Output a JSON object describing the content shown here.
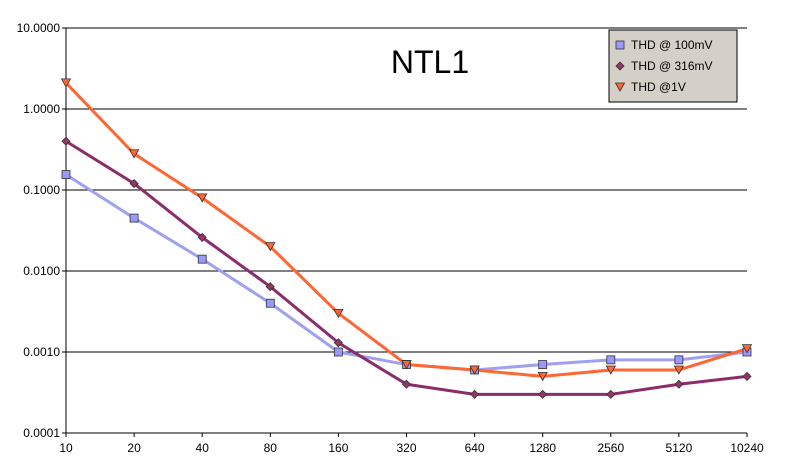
{
  "chart_data": {
    "type": "line",
    "title": "NTL1",
    "xlabel": "",
    "ylabel": "",
    "y_scale": "log",
    "ylim": [
      0.0001,
      10
    ],
    "yticks": [
      "10.0000",
      "1.0000",
      "0.1000",
      "0.0100",
      "0.0010",
      "0.0001"
    ],
    "ytick_values": [
      10,
      1,
      0.1,
      0.01,
      0.001,
      0.0001
    ],
    "categories": [
      "10",
      "20",
      "40",
      "80",
      "160",
      "320",
      "640",
      "1280",
      "2560",
      "5120",
      "10240"
    ],
    "grid": "horizontal",
    "legend_position": "top-right",
    "series": [
      {
        "name": "THD @ 100mV",
        "line_color": "#a0a0f0",
        "marker_color": "#9999ff",
        "marker": "square",
        "values": [
          0.155,
          0.045,
          0.014,
          0.004,
          0.001,
          0.0007,
          0.0006,
          0.0007,
          0.0008,
          0.0008,
          0.001
        ]
      },
      {
        "name": "THD @ 316mV",
        "line_color": "#8b2c6b",
        "marker_color": "#993366",
        "marker": "diamond",
        "values": [
          0.4,
          0.12,
          0.026,
          0.0064,
          0.0013,
          0.0004,
          0.0003,
          0.0003,
          0.0003,
          0.0004,
          0.0005
        ]
      },
      {
        "name": "THD @1V",
        "line_color": "#ff6633",
        "marker_color": "#ff6633",
        "marker": "triangle-down",
        "values": [
          2.1,
          0.28,
          0.08,
          0.02,
          0.003,
          0.0007,
          0.0006,
          0.0005,
          0.0006,
          0.0006,
          0.0011
        ]
      }
    ]
  }
}
